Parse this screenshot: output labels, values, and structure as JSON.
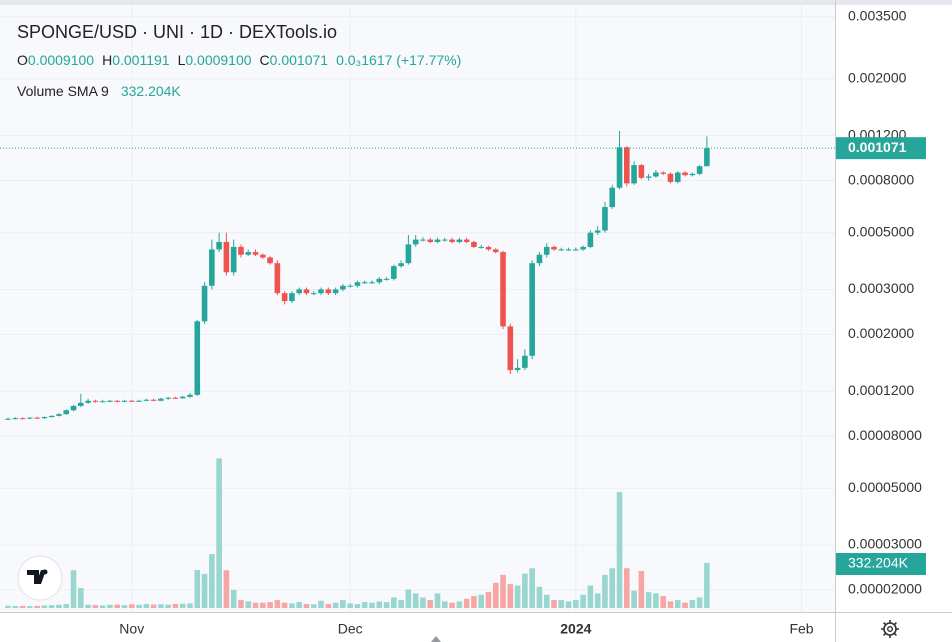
{
  "chart_data": {
    "type": "candlestick",
    "title": "SPONGE/USD · UNI · 1D · DEXTools.io",
    "ohlc_legend": [
      {
        "key": "O",
        "value": "0.0009100"
      },
      {
        "key": "H",
        "value": "0.001191"
      },
      {
        "key": "L",
        "value": "0.0009100"
      },
      {
        "key": "C",
        "value": "0.001071"
      }
    ],
    "change": "0.0₃1617 (+17.77%)",
    "volume_sma": {
      "name": "Volume SMA 9",
      "value": 332204,
      "label": "332.204K"
    },
    "last_price": {
      "value": 0.001071,
      "label": "0.001071"
    },
    "up_color": "#26a69a",
    "down_color": "#ef5350",
    "up_volume_color": "#9ad6d0",
    "down_volume_color": "#f5a6a5",
    "log_scale": true,
    "grid": true,
    "xlim": [
      -1.1,
      113.6
    ],
    "xticks": [
      {
        "value": 17,
        "label": "Nov"
      },
      {
        "value": 47,
        "label": "Dec"
      },
      {
        "value": 78,
        "label": "2024"
      },
      {
        "value": 109,
        "label": "Feb"
      }
    ],
    "ylim": [
      1.64e-05,
      0.00407
    ],
    "yticks": [
      {
        "value": 0.0035,
        "label": "0.003500"
      },
      {
        "value": 0.002,
        "label": "0.002000"
      },
      {
        "value": 0.0012,
        "label": "0.001200"
      },
      {
        "value": 0.0008,
        "label": "0.0008000"
      },
      {
        "value": 0.0005,
        "label": "0.0005000"
      },
      {
        "value": 0.0003,
        "label": "0.0003000"
      },
      {
        "value": 0.0002,
        "label": "0.0002000"
      },
      {
        "value": 0.00012,
        "label": "0.0001200"
      },
      {
        "value": 8e-05,
        "label": "0.00008000"
      },
      {
        "value": 5e-05,
        "label": "0.00005000"
      },
      {
        "value": 3e-05,
        "label": "0.00003000"
      },
      {
        "value": 2e-05,
        "label": "0.00002000"
      }
    ],
    "y2lim": [
      0,
      1600000
    ],
    "open": [
      9.3e-05,
      9.35e-05,
      9.4e-05,
      9.38e-05,
      9.45e-05,
      9.4e-05,
      9.5e-05,
      9.6e-05,
      9.75e-05,
      0.000101,
      0.000105,
      0.000108,
      0.00011,
      0.000109,
      0.0001095,
      0.00011,
      0.000109,
      0.00011,
      0.0001095,
      0.00011,
      0.000111,
      0.00011,
      0.000112,
      0.000113,
      0.0001125,
      0.000114,
      0.000116,
      0.000225,
      0.00031,
      0.00043,
      0.00046,
      0.00035,
      0.00044,
      0.00041,
      0.00042,
      0.00041,
      0.0004,
      0.00038,
      0.00029,
      0.00027,
      0.00029,
      0.0003,
      0.00029,
      0.00029,
      0.0003,
      0.00029,
      0.0003,
      0.00031,
      0.00031,
      0.00032,
      0.00032,
      0.00032,
      0.00033,
      0.00033,
      0.00037,
      0.00038,
      0.00045,
      0.00047,
      0.00047,
      0.00046,
      0.00047,
      0.00047,
      0.00046,
      0.00047,
      0.00046,
      0.00044,
      0.00044,
      0.00043,
      0.00042,
      0.000215,
      0.000145,
      0.000148,
      0.000165,
      0.00038,
      0.00041,
      0.00044,
      0.00043,
      0.00043,
      0.00043,
      0.00043,
      0.00044,
      0.0005,
      0.00051,
      0.00063,
      0.00075,
      0.00108,
      0.00078,
      0.00092,
      0.00082,
      0.00083,
      0.00086,
      0.00085,
      0.00079,
      0.00086,
      0.00084,
      0.00085,
      0.00091
    ],
    "high": [
      9.45e-05,
      9.5e-05,
      9.48e-05,
      9.5e-05,
      9.52e-05,
      9.55e-05,
      9.65e-05,
      9.85e-05,
      0.000102,
      0.000106,
      0.000117,
      0.000112,
      0.000111,
      0.000111,
      0.000111,
      0.000111,
      0.000111,
      0.000111,
      0.000111,
      0.000112,
      0.000112,
      0.000113,
      0.000114,
      0.000114,
      0.000115,
      0.000118,
      0.000228,
      0.00032,
      0.00047,
      0.0005,
      0.0005,
      0.00047,
      0.00045,
      0.00043,
      0.00043,
      0.000415,
      0.000405,
      0.00039,
      0.000295,
      0.000295,
      0.000305,
      0.000305,
      0.000295,
      0.000305,
      0.000305,
      0.000305,
      0.000315,
      0.000315,
      0.000325,
      0.000325,
      0.000325,
      0.000335,
      0.000335,
      0.000375,
      0.00039,
      0.00049,
      0.00049,
      0.00048,
      0.000478,
      0.000478,
      0.000478,
      0.000478,
      0.000478,
      0.000478,
      0.000465,
      0.000448,
      0.000445,
      0.000435,
      0.000425,
      0.00022,
      0.00016,
      0.000175,
      0.00039,
      0.00042,
      0.000455,
      0.000445,
      0.000437,
      0.000437,
      0.000437,
      0.000445,
      0.00051,
      0.00053,
      0.00066,
      0.00077,
      0.00125,
      0.00109,
      0.00095,
      0.00093,
      0.00085,
      0.00088,
      0.00087,
      0.00086,
      0.00087,
      0.00087,
      0.00086,
      0.00092,
      0.001191
    ],
    "low": [
      9.25e-05,
      9.3e-05,
      9.32e-05,
      9.32e-05,
      9.35e-05,
      9.35e-05,
      9.45e-05,
      9.55e-05,
      9.7e-05,
      0.0001,
      0.000104,
      0.000107,
      0.000108,
      0.0001085,
      0.0001085,
      0.0001085,
      0.0001085,
      0.000109,
      0.000109,
      0.0001095,
      0.0001095,
      0.0001095,
      0.000111,
      0.000112,
      0.000112,
      0.000113,
      0.000115,
      0.00022,
      0.0003,
      0.00042,
      0.00034,
      0.00034,
      0.0004,
      0.000405,
      0.000405,
      0.000395,
      0.000375,
      0.000285,
      0.000262,
      0.000265,
      0.000285,
      0.000285,
      0.000285,
      0.000285,
      0.000285,
      0.000285,
      0.000295,
      0.000305,
      0.000305,
      0.000315,
      0.000315,
      0.000315,
      0.000325,
      0.000325,
      0.000365,
      0.000375,
      0.00044,
      0.000462,
      0.000455,
      0.000455,
      0.000462,
      0.000455,
      0.000455,
      0.000455,
      0.000435,
      0.000433,
      0.000425,
      0.000415,
      0.00021,
      0.00014,
      0.000142,
      0.000145,
      0.00016,
      0.00037,
      0.0004,
      0.000425,
      0.000425,
      0.000425,
      0.000425,
      0.000425,
      0.000435,
      0.00049,
      0.0005,
      0.00062,
      0.00074,
      0.00076,
      0.00077,
      0.00081,
      0.0008,
      0.00082,
      0.00084,
      0.00078,
      0.00078,
      0.00083,
      0.00083,
      0.00084,
      0.00091
    ],
    "close": [
      9.35e-05,
      9.4e-05,
      9.38e-05,
      9.45e-05,
      9.4e-05,
      9.5e-05,
      9.6e-05,
      9.75e-05,
      0.000101,
      0.000105,
      0.000108,
      0.00011,
      0.000109,
      0.0001095,
      0.00011,
      0.000109,
      0.00011,
      0.0001095,
      0.00011,
      0.000111,
      0.00011,
      0.000112,
      0.000113,
      0.0001125,
      0.000114,
      0.000116,
      0.000225,
      0.00031,
      0.00043,
      0.00046,
      0.00035,
      0.00044,
      0.00041,
      0.00042,
      0.00041,
      0.0004,
      0.00038,
      0.00029,
      0.00027,
      0.00029,
      0.0003,
      0.00029,
      0.00029,
      0.0003,
      0.00029,
      0.0003,
      0.00031,
      0.00031,
      0.00032,
      0.00032,
      0.00032,
      0.00033,
      0.00033,
      0.00037,
      0.00038,
      0.00045,
      0.00047,
      0.00047,
      0.00046,
      0.00047,
      0.00047,
      0.00046,
      0.00047,
      0.00046,
      0.00044,
      0.00044,
      0.00043,
      0.00042,
      0.000215,
      0.000145,
      0.000148,
      0.000165,
      0.00038,
      0.00041,
      0.00044,
      0.00043,
      0.00043,
      0.00043,
      0.00043,
      0.00044,
      0.0005,
      0.00051,
      0.00063,
      0.00075,
      0.00108,
      0.00078,
      0.00092,
      0.00082,
      0.00083,
      0.00086,
      0.00085,
      0.00079,
      0.00086,
      0.00084,
      0.00085,
      0.00091,
      0.001071
    ],
    "volume": [
      18000,
      15000,
      16000,
      14000,
      16000,
      20000,
      22000,
      25000,
      30000,
      285000,
      150000,
      25000,
      22000,
      20000,
      24000,
      26000,
      22000,
      28000,
      24000,
      30000,
      26000,
      28000,
      25000,
      30000,
      32000,
      35000,
      287000,
      258000,
      407000,
      1130000,
      285000,
      136000,
      60000,
      50000,
      40000,
      40000,
      45000,
      60000,
      40000,
      35000,
      45000,
      30000,
      28000,
      55000,
      30000,
      40000,
      60000,
      35000,
      30000,
      45000,
      40000,
      50000,
      45000,
      80000,
      60000,
      140000,
      110000,
      80000,
      60000,
      110000,
      50000,
      40000,
      50000,
      70000,
      90000,
      100000,
      120000,
      190000,
      250000,
      180000,
      170000,
      260000,
      300000,
      160000,
      100000,
      60000,
      60000,
      50000,
      60000,
      100000,
      170000,
      110000,
      250000,
      300000,
      875000,
      300000,
      130000,
      280000,
      120000,
      110000,
      90000,
      50000,
      60000,
      40000,
      60000,
      80000,
      340000
    ]
  }
}
